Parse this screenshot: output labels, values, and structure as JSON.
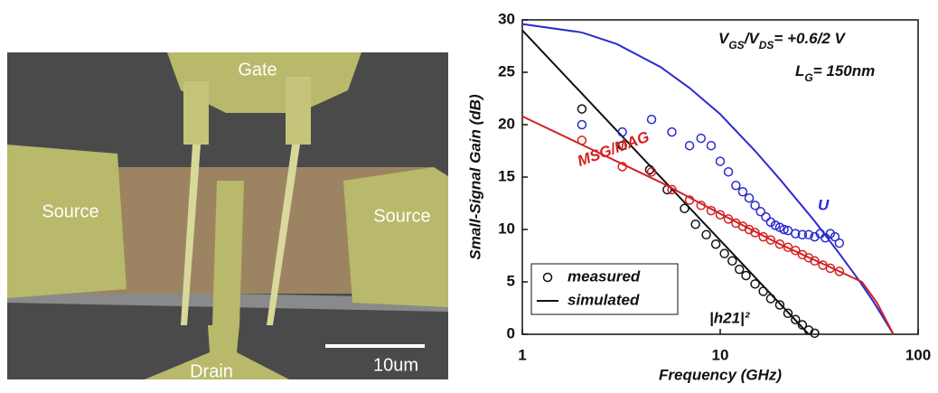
{
  "image": {
    "labels": {
      "gate": "Gate",
      "source_left": "Source",
      "source_right": "Source",
      "drain": "Drain",
      "scale_bar": "10um"
    }
  },
  "chart_data": {
    "type": "scatter-line",
    "x_label": "Frequency (GHz)",
    "y_label": "Small-Signal Gain (dB)",
    "xlim": [
      1,
      100
    ],
    "xticks": [
      1,
      10,
      100
    ],
    "log_x": true,
    "ylim": [
      0,
      30
    ],
    "yticks": [
      0,
      5,
      10,
      15,
      20,
      25,
      30
    ],
    "annotations": [
      {
        "parts": [
          "V",
          "GS",
          "/V",
          "DS",
          "= +0.6/2 V"
        ]
      },
      {
        "parts": [
          "L",
          "G",
          "= 150nm"
        ]
      }
    ],
    "legend": {
      "entries": [
        "measured",
        "simulated"
      ],
      "position": "lower left"
    },
    "series": [
      {
        "name": "|h21|²",
        "color": "#111111",
        "measured": {
          "x": [
            2,
            3.2,
            4.4,
            5.4,
            6.6,
            7.5,
            8.5,
            9.5,
            10.5,
            11.5,
            12.5,
            13.5,
            15,
            16.5,
            18,
            20,
            22,
            24,
            26,
            28,
            30
          ],
          "values": [
            21.5,
            18,
            15.7,
            13.8,
            12,
            10.5,
            9.5,
            8.6,
            7.7,
            7,
            6.2,
            5.6,
            4.8,
            4.1,
            3.4,
            2.8,
            2,
            1.4,
            0.9,
            0.4,
            0.1
          ]
        },
        "simulated": {
          "x": [
            1,
            28
          ],
          "values": [
            29,
            0
          ]
        }
      },
      {
        "name": "U",
        "color": "#2a2ad0",
        "measured": {
          "x": [
            2,
            3.2,
            4.5,
            5.7,
            7,
            8,
            9,
            10,
            11,
            12,
            13,
            14,
            15,
            16,
            17,
            18,
            19,
            20,
            21,
            22,
            24,
            26,
            28,
            30,
            32,
            34,
            36,
            38,
            40
          ],
          "values": [
            20,
            19.3,
            20.5,
            19.3,
            18,
            18.7,
            18,
            16.5,
            15.5,
            14.2,
            13.6,
            13,
            12.3,
            11.7,
            11.2,
            10.7,
            10.4,
            10.2,
            10,
            9.9,
            9.6,
            9.5,
            9.5,
            9.3,
            9.6,
            9.2,
            9.6,
            9.3,
            8.7
          ]
        },
        "simulated": {
          "x": [
            1,
            2,
            3,
            5,
            7,
            10,
            15,
            20,
            30,
            40,
            50,
            60,
            75
          ],
          "values": [
            29.6,
            28.8,
            27.7,
            25.5,
            23.5,
            21,
            17.5,
            14.8,
            10.8,
            7.7,
            5.2,
            3,
            0
          ]
        }
      },
      {
        "name": "MSG/MAG",
        "color": "#d42020",
        "measured": {
          "x": [
            2,
            3.2,
            4.5,
            5.7,
            7,
            8,
            9,
            10,
            11,
            12,
            13,
            14,
            15,
            16.5,
            18,
            20,
            22,
            24,
            26,
            28,
            30,
            33,
            36,
            40
          ],
          "values": [
            18.5,
            16,
            15.5,
            13.8,
            12.8,
            12.3,
            11.8,
            11.4,
            11,
            10.6,
            10.3,
            10,
            9.7,
            9.3,
            9,
            8.6,
            8.3,
            8,
            7.6,
            7.3,
            7,
            6.6,
            6.3,
            6
          ]
        },
        "simulated": {
          "x": [
            1,
            5,
            10,
            20,
            40,
            52,
            62,
            75
          ],
          "values": [
            20.8,
            14.5,
            11.5,
            8.6,
            6,
            5,
            3,
            0
          ]
        }
      }
    ]
  }
}
